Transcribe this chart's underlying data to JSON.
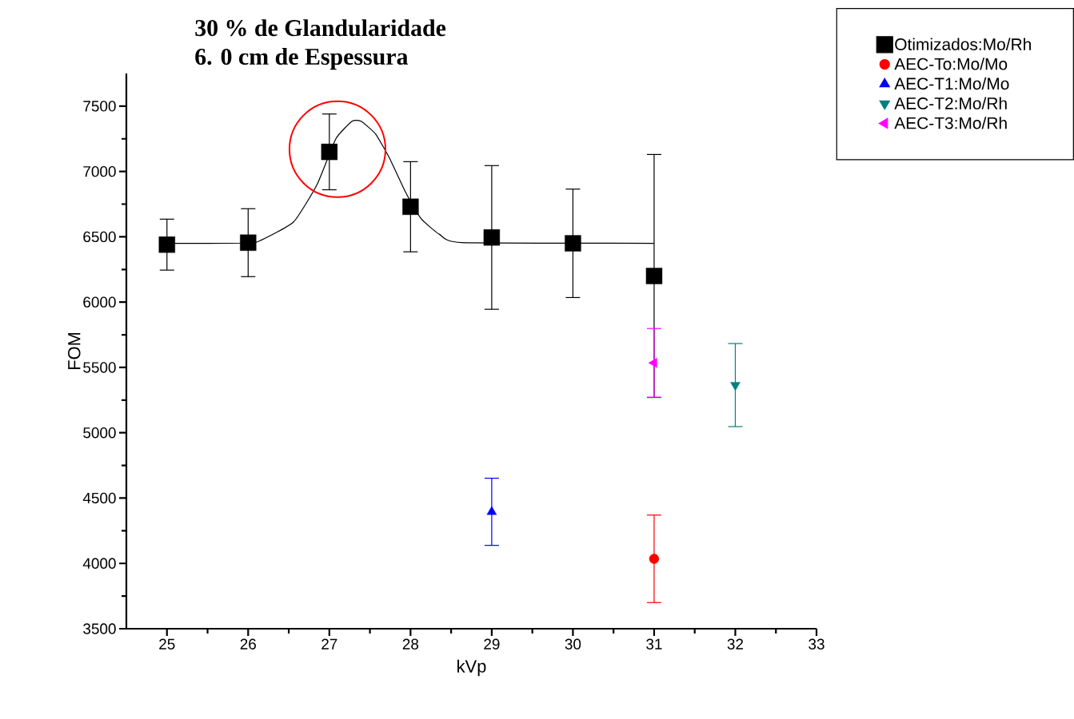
{
  "chart_data": {
    "type": "scatter",
    "title": "30 % de Glandularidade",
    "subtitle": "6. 0 cm de Espessura",
    "xlabel": "kVp",
    "ylabel": "FOM",
    "series": [
      {
        "name": "Otimizados:Mo/Rh",
        "color": "#000000",
        "marker": "square",
        "x": [
          25,
          26,
          27,
          28,
          29,
          30,
          31
        ],
        "values": [
          6440,
          6455,
          7150,
          6730,
          6495,
          6450,
          6200
        ],
        "errors": [
          195,
          260,
          290,
          345,
          550,
          415,
          930
        ]
      },
      {
        "name": "AEC-To:Mo/Mo",
        "color": "#ff0000",
        "marker": "circle",
        "x": [
          31
        ],
        "values": [
          4035
        ],
        "errors": [
          335
        ]
      },
      {
        "name": "AEC-T1:Mo/Mo",
        "color": "#0000ff",
        "marker": "triangle",
        "x": [
          29
        ],
        "values": [
          4395
        ],
        "errors": [
          257
        ]
      },
      {
        "name": "AEC-T2:Mo/Rh",
        "color": "#008080",
        "marker": "triangle-down",
        "x": [
          32
        ],
        "values": [
          5365
        ],
        "errors": [
          318
        ]
      },
      {
        "name": "AEC-T3:Mo/Rh",
        "color": "#ff00ff",
        "marker": "triangle-left",
        "x": [
          31
        ],
        "values": [
          5535
        ],
        "errors": [
          263
        ]
      },
      {
        "type": "line",
        "color": "#000000",
        "marker": "none",
        "x": [
          25,
          26,
          26.16,
          26.56,
          26.85,
          27.08,
          27.28,
          27.39,
          27.57,
          27.74,
          27.94,
          28.13,
          28.36,
          28.63,
          31
        ],
        "values": [
          6450,
          6452,
          6474,
          6614,
          6902,
          7250,
          7384,
          7384,
          7286,
          7103,
          6840,
          6639,
          6517,
          6456,
          6450
        ]
      }
    ],
    "xlim": [
      24.5,
      33
    ],
    "ylim": [
      3500,
      7750
    ],
    "xticks": [
      25,
      26,
      27,
      28,
      29,
      30,
      31,
      32,
      33
    ],
    "yticks": [
      3500,
      4000,
      4500,
      5000,
      5500,
      6000,
      6500,
      7000,
      7500
    ],
    "grid": false,
    "legend": "top right"
  }
}
